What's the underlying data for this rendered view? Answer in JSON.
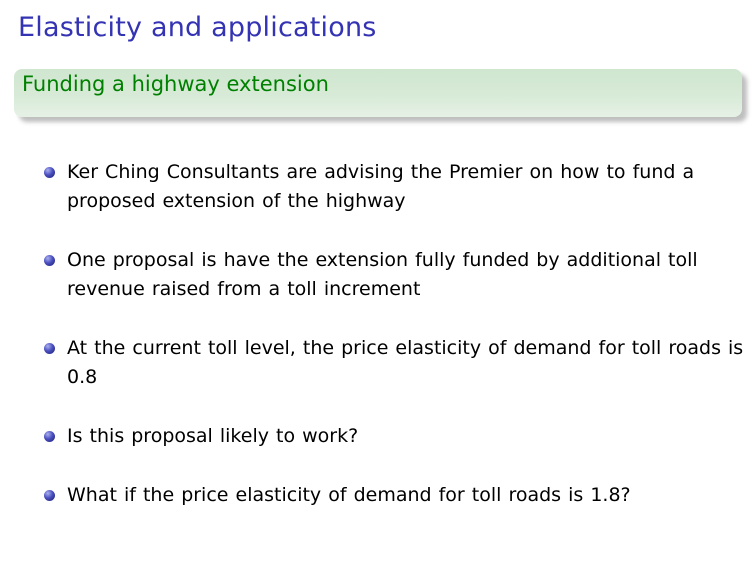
{
  "frame": {
    "title": "Elasticity and applications"
  },
  "block": {
    "title": "Funding a highway extension"
  },
  "bullets": [
    {
      "text": "Ker Ching Consultants are advising the Premier on how to fund a proposed extension of the highway"
    },
    {
      "text": "One proposal is have the extension fully funded by additional toll revenue raised from a toll increment"
    },
    {
      "text": "At the current toll level, the price elasticity of demand for toll roads is 0.8"
    },
    {
      "text": "Is this proposal likely to work?"
    },
    {
      "text": "What if the price elasticity of demand for toll roads is 1.8?"
    }
  ],
  "colors": {
    "title": "#3333b3",
    "block_title": "#008000",
    "block_background": "#d7ead7",
    "bullet": "#4a4fc0"
  },
  "icons": {
    "bullet": "ball-bullet-icon"
  }
}
